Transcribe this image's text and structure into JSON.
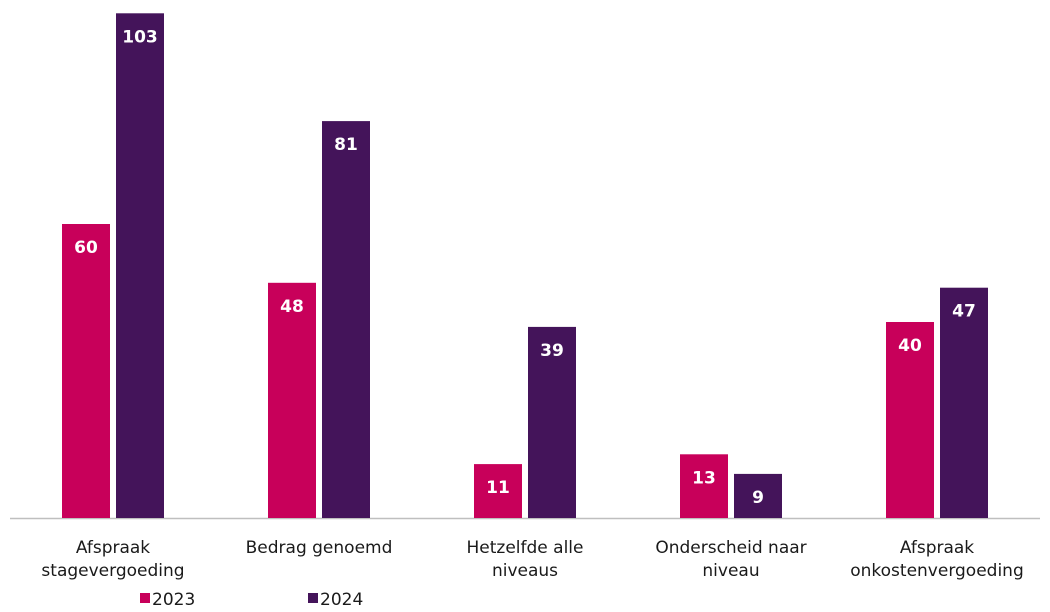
{
  "chart_data": {
    "type": "bar",
    "categories": [
      [
        "Afspraak",
        "stagevergoeding"
      ],
      [
        "Bedrag genoemd"
      ],
      [
        "Hetzelfde alle",
        "niveaus"
      ],
      [
        "Onderscheid naar",
        "niveau"
      ],
      [
        "Afspraak",
        "onkostenvergoeding"
      ]
    ],
    "series": [
      {
        "name": "2023",
        "color": "#c8005a",
        "values": [
          60,
          48,
          11,
          13,
          40
        ]
      },
      {
        "name": "2024",
        "color": "#44145a",
        "values": [
          103,
          81,
          39,
          9,
          47
        ]
      }
    ],
    "ylim": [
      0,
      105
    ],
    "grid": false,
    "legend": "bottom-left",
    "baseline_color": "#bfbfbf"
  }
}
